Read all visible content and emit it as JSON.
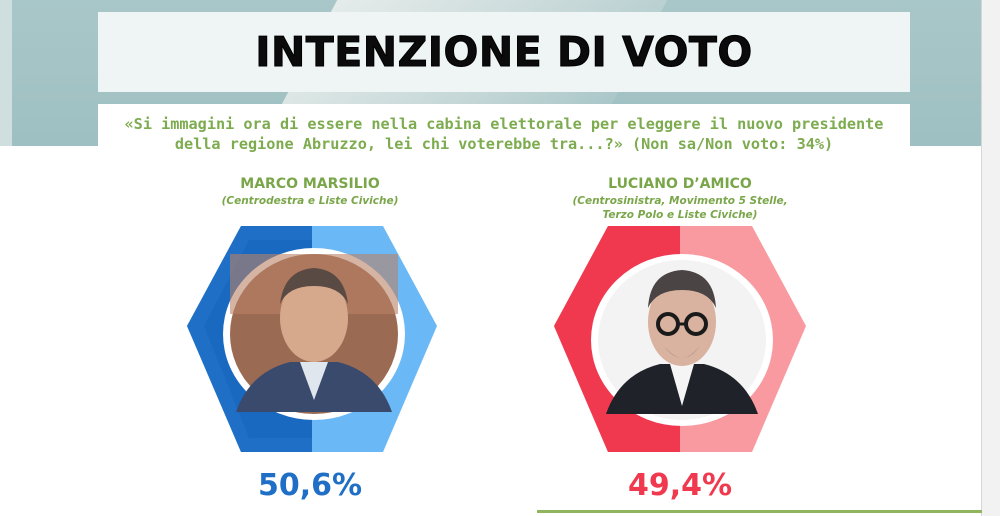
{
  "header": {
    "title": "INTENZIONE DI VOTO",
    "question_line1": "«Si immagini ora di essere nella cabina elettorale per eleggere il nuovo presidente",
    "question_line2": "della regione Abruzzo, lei chi voterebbe tra...?» (Non sa/Non voto: 34%)"
  },
  "colors": {
    "accent_green": "#7aa64a",
    "marsilio_dark": "#1f6fc6",
    "marsilio_light": "#6ab8f5",
    "damico_dark": "#f0394e",
    "damico_light": "#f99aa1"
  },
  "chart_data": {
    "type": "bar",
    "categories": [
      "MARCO MARSILIO",
      "LUCIANO D'AMICO"
    ],
    "values": [
      50.6,
      49.4
    ],
    "value_labels": [
      "50,6%",
      "49,4%"
    ],
    "coalitions": [
      [
        "(Centrodestra e Liste Civiche)"
      ],
      [
        "(Centrosinistra, Movimento 5 Stelle,",
        "Terzo Polo e Liste Civiche)"
      ]
    ],
    "unit": "%",
    "ylim": [
      0,
      100
    ]
  },
  "candidates": [
    {
      "name": "MARCO MARSILIO",
      "coalition_lines": [
        "(Centrodestra e Liste Civiche)"
      ],
      "percent_label": "50,6%",
      "value": 50.6,
      "photo_icon": "candidate-photo-icon"
    },
    {
      "name": "LUCIANO D’AMICO",
      "coalition_lines": [
        "(Centrosinistra, Movimento 5 Stelle,",
        "Terzo Polo e Liste Civiche)"
      ],
      "percent_label": "49,4%",
      "value": 49.4,
      "photo_icon": "candidate-photo-icon"
    }
  ]
}
